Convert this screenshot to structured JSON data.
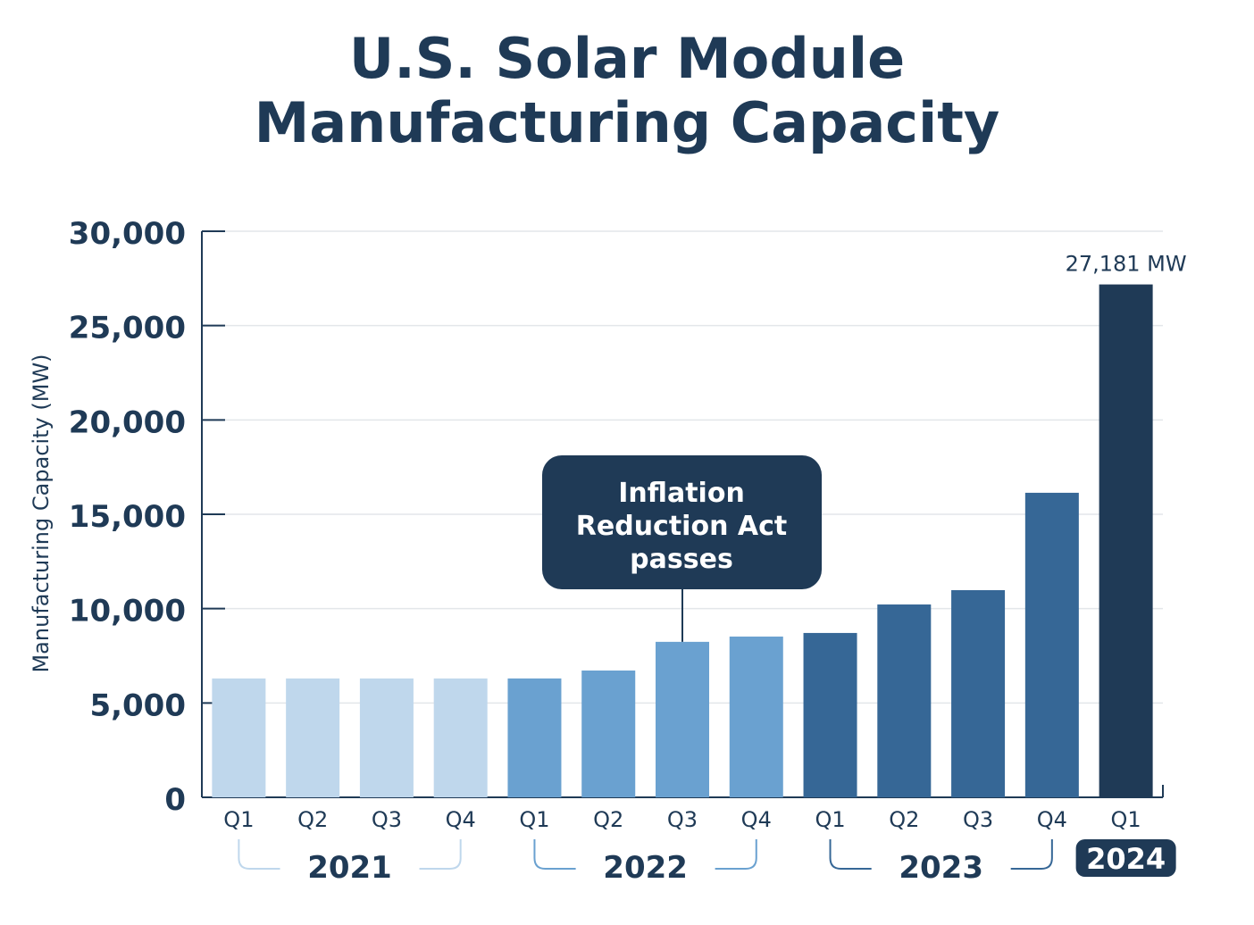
{
  "chart_data": {
    "type": "bar",
    "title_line1": "U.S. Solar Module",
    "title_line2": "Manufacturing Capacity",
    "ylabel": "Manufacturing Capacity (MW)",
    "xlabel": "",
    "ylim": [
      0,
      30000
    ],
    "yticks": [
      "0",
      "5,000",
      "10,000",
      "15,000",
      "20,000",
      "25,000",
      "30,000"
    ],
    "ytick_values": [
      0,
      5000,
      10000,
      15000,
      20000,
      25000,
      30000
    ],
    "grid": true,
    "categories": [
      "Q1",
      "Q2",
      "Q3",
      "Q4",
      "Q1",
      "Q2",
      "Q3",
      "Q4",
      "Q1",
      "Q2",
      "Q3",
      "Q4",
      "Q1"
    ],
    "years": [
      {
        "label": "2021",
        "start": 0,
        "end": 3,
        "color": "#bfd7ec"
      },
      {
        "label": "2022",
        "start": 4,
        "end": 7,
        "color": "#6aa1d0"
      },
      {
        "label": "2023",
        "start": 8,
        "end": 11,
        "color": "#366796"
      },
      {
        "label": "2024",
        "start": 12,
        "end": 12,
        "color": "#1f3a56"
      }
    ],
    "values": [
      6300,
      6300,
      6300,
      6300,
      6300,
      6720,
      8240,
      8520,
      8710,
      10220,
      10980,
      16140,
      27181
    ],
    "data_label": {
      "index": 12,
      "text": "27,181 MW"
    },
    "annotation": {
      "index": 6,
      "lines": [
        "Inflation",
        "Reduction Act",
        "passes"
      ]
    }
  }
}
